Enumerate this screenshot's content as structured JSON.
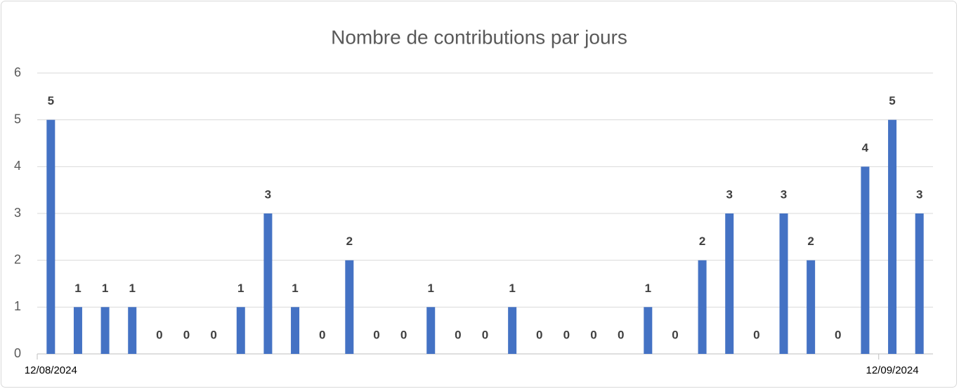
{
  "chart_data": {
    "type": "bar",
    "title": "Nombre de contributions par jours",
    "categories": [
      "12/08/2024",
      null,
      null,
      null,
      null,
      null,
      null,
      null,
      null,
      null,
      null,
      null,
      null,
      null,
      null,
      null,
      null,
      null,
      null,
      null,
      null,
      null,
      null,
      null,
      null,
      null,
      null,
      null,
      null,
      null,
      null,
      "12/09/2024",
      null
    ],
    "values": [
      5,
      1,
      1,
      1,
      0,
      0,
      0,
      1,
      3,
      1,
      0,
      2,
      0,
      0,
      1,
      0,
      0,
      1,
      0,
      0,
      0,
      0,
      1,
      0,
      2,
      3,
      0,
      3,
      2,
      0,
      4,
      5,
      3
    ],
    "color": "#4472c4",
    "ylim": [
      0,
      6
    ],
    "yticks": [
      0,
      1,
      2,
      3,
      4,
      5,
      6
    ],
    "grid": true
  }
}
